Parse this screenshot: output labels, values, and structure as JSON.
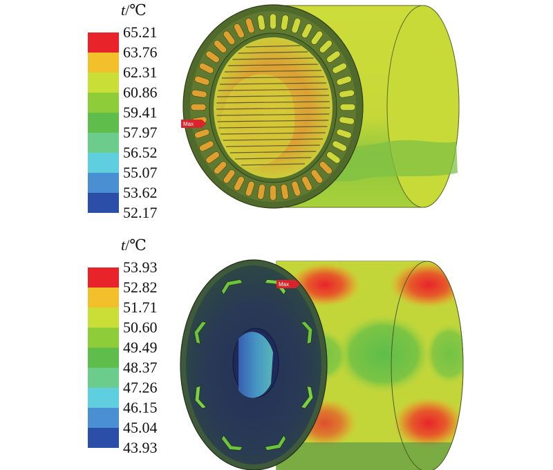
{
  "panels": [
    {
      "id": "stator",
      "unit_symbol": "t",
      "unit_suffix": "/℃",
      "max_marker": "Max",
      "legend": {
        "ticks": [
          "65.21",
          "63.76",
          "62.31",
          "60.86",
          "59.41",
          "57.97",
          "56.52",
          "55.07",
          "53.62",
          "52.17"
        ],
        "colors": [
          "#e8242a",
          "#f2c02a",
          "#c9de36",
          "#8fcc3a",
          "#5ebd4b",
          "#6ccc8c",
          "#5fcfe0",
          "#4a8fd2",
          "#2b4ea8"
        ]
      }
    },
    {
      "id": "rotor",
      "unit_symbol": "t",
      "unit_suffix": "/℃",
      "max_marker": "Max",
      "legend": {
        "ticks": [
          "53.93",
          "52.82",
          "51.71",
          "50.60",
          "49.49",
          "48.37",
          "47.26",
          "46.15",
          "45.04",
          "43.93"
        ],
        "colors": [
          "#e8242a",
          "#f2c02a",
          "#c9de36",
          "#8fcc3a",
          "#5ebd4b",
          "#6ccc8c",
          "#5fcfe0",
          "#4a8fd2",
          "#2b4ea8"
        ]
      }
    }
  ]
}
